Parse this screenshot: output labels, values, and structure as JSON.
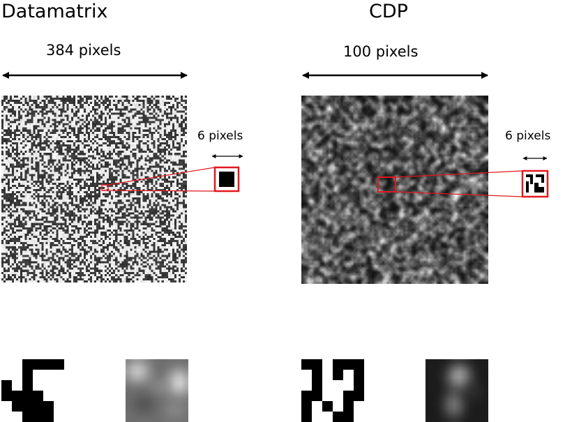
{
  "panels": [
    {
      "title": "Datamatrix",
      "width_label": "384 pixels",
      "zoom_label": "6 pixels"
    },
    {
      "title": "CDP",
      "width_label": "100 pixels",
      "zoom_label": "6 pixels"
    }
  ],
  "colors": {
    "highlight": "#e0191f",
    "ink": "#000000",
    "background": "#ffffff"
  }
}
